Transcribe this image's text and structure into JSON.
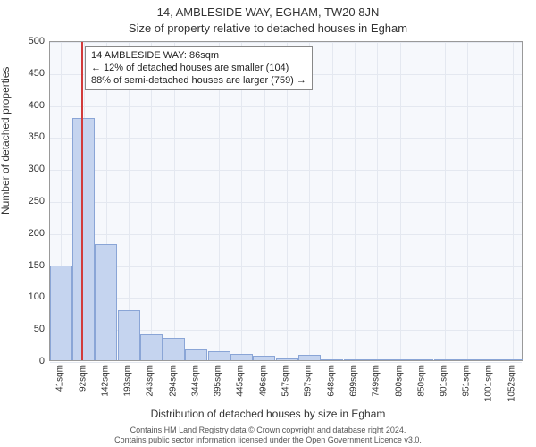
{
  "title": {
    "line1": "14, AMBLESIDE WAY, EGHAM, TW20 8JN",
    "line2": "Size of property relative to detached houses in Egham"
  },
  "axes": {
    "ylabel": "Number of detached properties",
    "xlabel": "Distribution of detached houses by size in Egham"
  },
  "footer": {
    "line1": "Contains HM Land Registry data © Crown copyright and database right 2024.",
    "line2": "Contains public sector information licensed under the Open Government Licence v3.0."
  },
  "annotation": {
    "line1": "14 AMBLESIDE WAY: 86sqm",
    "line2": "← 12% of detached houses are smaller (104)",
    "line3": "88% of semi-detached houses are larger (759) →"
  },
  "chart": {
    "type": "bar",
    "plot_background": "#f6f8fc",
    "grid_color": "#e4e8f0",
    "axis_color": "#999999",
    "bar_fill": "#c5d4ef",
    "bar_border": "#8aa5d6",
    "marker_color": "#d23b3b",
    "marker_x": 86,
    "ylim": [
      0,
      500
    ],
    "ytick_step": 50,
    "xlim": [
      16,
      1077
    ],
    "bar_width_sqm": 50,
    "xticks": [
      41,
      92,
      142,
      193,
      243,
      294,
      344,
      395,
      445,
      496,
      547,
      597,
      648,
      699,
      749,
      800,
      850,
      901,
      951,
      1001,
      1052
    ],
    "xtick_suffix": "sqm",
    "bars": [
      {
        "x": 41,
        "value": 148
      },
      {
        "x": 92,
        "value": 378
      },
      {
        "x": 142,
        "value": 182
      },
      {
        "x": 193,
        "value": 78
      },
      {
        "x": 243,
        "value": 40
      },
      {
        "x": 294,
        "value": 35
      },
      {
        "x": 344,
        "value": 18
      },
      {
        "x": 395,
        "value": 14
      },
      {
        "x": 445,
        "value": 10
      },
      {
        "x": 496,
        "value": 7
      },
      {
        "x": 547,
        "value": 3
      },
      {
        "x": 597,
        "value": 8
      },
      {
        "x": 648,
        "value": 2
      },
      {
        "x": 699,
        "value": 1
      },
      {
        "x": 749,
        "value": 2
      },
      {
        "x": 800,
        "value": 1
      },
      {
        "x": 850,
        "value": 0
      },
      {
        "x": 901,
        "value": 1
      },
      {
        "x": 951,
        "value": 0
      },
      {
        "x": 1001,
        "value": 1
      },
      {
        "x": 1052,
        "value": 1
      }
    ],
    "title_fontsize": 13,
    "label_fontsize": 12,
    "tick_fontsize": 11
  }
}
